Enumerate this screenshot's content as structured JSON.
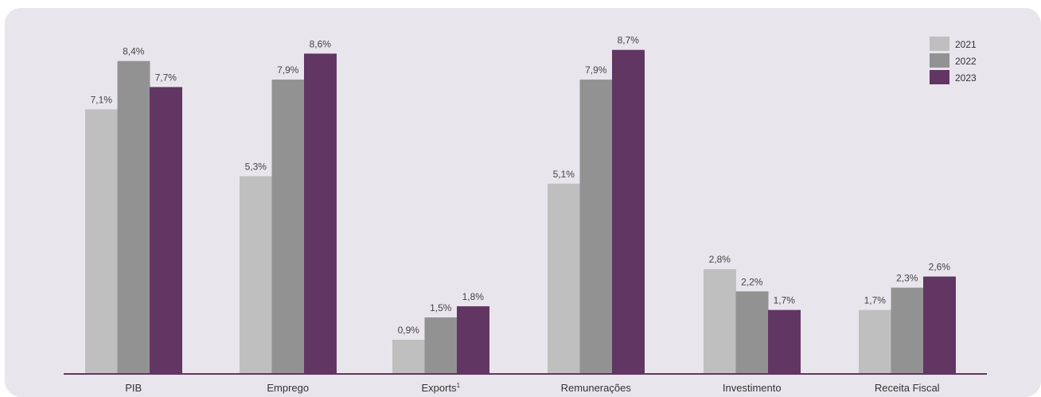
{
  "chart_data": {
    "type": "bar",
    "categories": [
      "PIB",
      "Emprego",
      "Exports",
      "Remunerações",
      "Investimento",
      "Receita Fiscal"
    ],
    "category_superscripts": [
      "",
      "",
      "1",
      "",
      "",
      ""
    ],
    "series": [
      {
        "name": "2021",
        "color": "#c0bfc0",
        "values": [
          7.1,
          5.3,
          0.9,
          5.1,
          2.8,
          1.7
        ],
        "labels": [
          "7,1%",
          "5,3%",
          "0,9%",
          "5,1%",
          "2,8%",
          "1,7%"
        ]
      },
      {
        "name": "2022",
        "color": "#939293",
        "values": [
          8.4,
          7.9,
          1.5,
          7.9,
          2.2,
          2.3
        ],
        "labels": [
          "8,4%",
          "7,9%",
          "1,5%",
          "7,9%",
          "2,2%",
          "2,3%"
        ]
      },
      {
        "name": "2023",
        "color": "#613663",
        "values": [
          7.7,
          8.6,
          1.8,
          8.7,
          1.7,
          2.6
        ],
        "labels": [
          "7,7%",
          "8,6%",
          "1,8%",
          "8,7%",
          "1,7%",
          "2,6%"
        ]
      }
    ],
    "ylim": [
      0,
      10
    ],
    "grid": false,
    "legend_position": "top-right",
    "axis_color": "#613663"
  }
}
